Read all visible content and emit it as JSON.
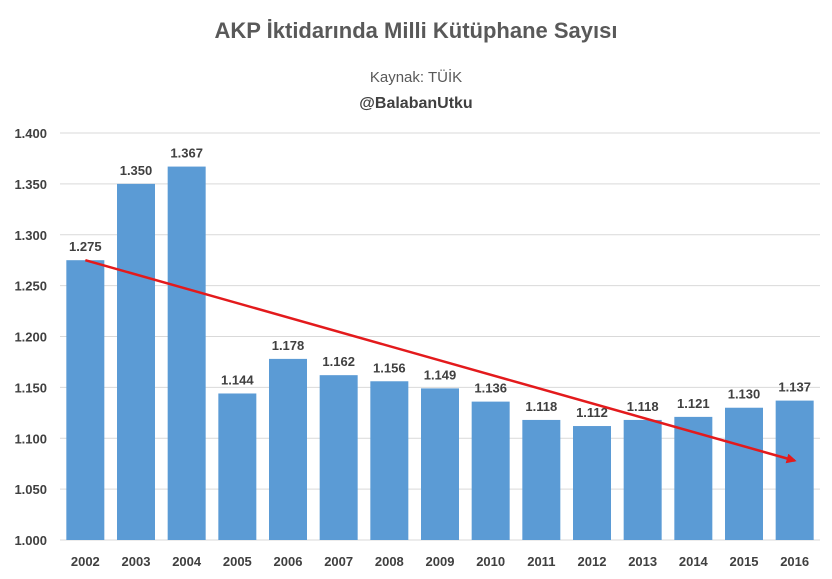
{
  "chart_data": {
    "type": "bar",
    "title": "AKP İktidarında Milli Kütüphane Sayısı",
    "subtitle": "Kaynak: TÜİK",
    "credit": "@BalabanUtku",
    "categories": [
      "2002",
      "2003",
      "2004",
      "2005",
      "2006",
      "2007",
      "2008",
      "2009",
      "2010",
      "2011",
      "2012",
      "2013",
      "2014",
      "2015",
      "2016"
    ],
    "values": [
      1275,
      1350,
      1367,
      1144,
      1178,
      1162,
      1156,
      1149,
      1136,
      1118,
      1112,
      1118,
      1121,
      1130,
      1137
    ],
    "value_labels": [
      "1.275",
      "1.350",
      "1.367",
      "1.144",
      "1.178",
      "1.162",
      "1.156",
      "1.149",
      "1.136",
      "1.118",
      "1.112",
      "1.118",
      "1.121",
      "1.130",
      "1.137"
    ],
    "ylim": [
      1000,
      1400
    ],
    "yticks": [
      1000,
      1050,
      1100,
      1150,
      1200,
      1250,
      1300,
      1350,
      1400
    ],
    "ytick_labels": [
      "1.000",
      "1.050",
      "1.100",
      "1.150",
      "1.200",
      "1.250",
      "1.300",
      "1.350",
      "1.400"
    ],
    "grid": true,
    "bar_color": "#5b9bd5",
    "trend_arrow": {
      "color": "#e31a1c",
      "from_category": "2002",
      "from_value": 1275,
      "to_category": "2016",
      "to_value": 1078
    }
  }
}
